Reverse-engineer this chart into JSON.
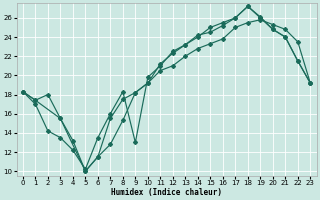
{
  "xlabel": "Humidex (Indice chaleur)",
  "bg_color": "#cce8e2",
  "grid_color": "#b8d8d0",
  "line_color": "#1a6b5a",
  "xlim": [
    -0.5,
    23.5
  ],
  "ylim": [
    9.5,
    27.5
  ],
  "yticks": [
    10,
    12,
    14,
    16,
    18,
    20,
    22,
    24,
    26
  ],
  "xticks": [
    0,
    1,
    2,
    3,
    4,
    5,
    6,
    7,
    8,
    9,
    10,
    11,
    12,
    13,
    14,
    15,
    16,
    17,
    18,
    19,
    20,
    21,
    22,
    23
  ],
  "line1_x": [
    0,
    1,
    2,
    3,
    4,
    5,
    6,
    7,
    8,
    9,
    10,
    11,
    12,
    13,
    14,
    15,
    16,
    17,
    18,
    19,
    20,
    21,
    22,
    23
  ],
  "line1_y": [
    18.3,
    17.4,
    18.0,
    15.5,
    13.2,
    10.0,
    11.5,
    12.8,
    15.3,
    18.2,
    19.2,
    21.2,
    22.3,
    23.2,
    24.0,
    25.0,
    25.5,
    26.0,
    27.2,
    26.1,
    24.8,
    24.0,
    21.5,
    19.2
  ],
  "line2_x": [
    0,
    1,
    2,
    3,
    4,
    5,
    6,
    7,
    8,
    9,
    10,
    11,
    12,
    13,
    14,
    15,
    16,
    17,
    18,
    19,
    20,
    21,
    22,
    23
  ],
  "line2_y": [
    18.3,
    17.0,
    14.2,
    13.5,
    12.2,
    10.2,
    13.5,
    16.0,
    18.3,
    13.0,
    19.8,
    21.0,
    22.5,
    23.2,
    24.2,
    24.5,
    25.2,
    26.0,
    27.2,
    26.0,
    24.8,
    24.0,
    21.5,
    19.2
  ],
  "line3_x": [
    0,
    1,
    3,
    5,
    6,
    7,
    8,
    9,
    10,
    11,
    12,
    13,
    14,
    15,
    16,
    17,
    18,
    19,
    20,
    21,
    22,
    23
  ],
  "line3_y": [
    18.3,
    17.4,
    15.5,
    10.0,
    11.5,
    15.5,
    17.5,
    18.2,
    19.2,
    20.5,
    21.0,
    22.0,
    22.8,
    23.3,
    23.8,
    25.0,
    25.5,
    25.8,
    25.3,
    24.8,
    23.5,
    19.2
  ]
}
